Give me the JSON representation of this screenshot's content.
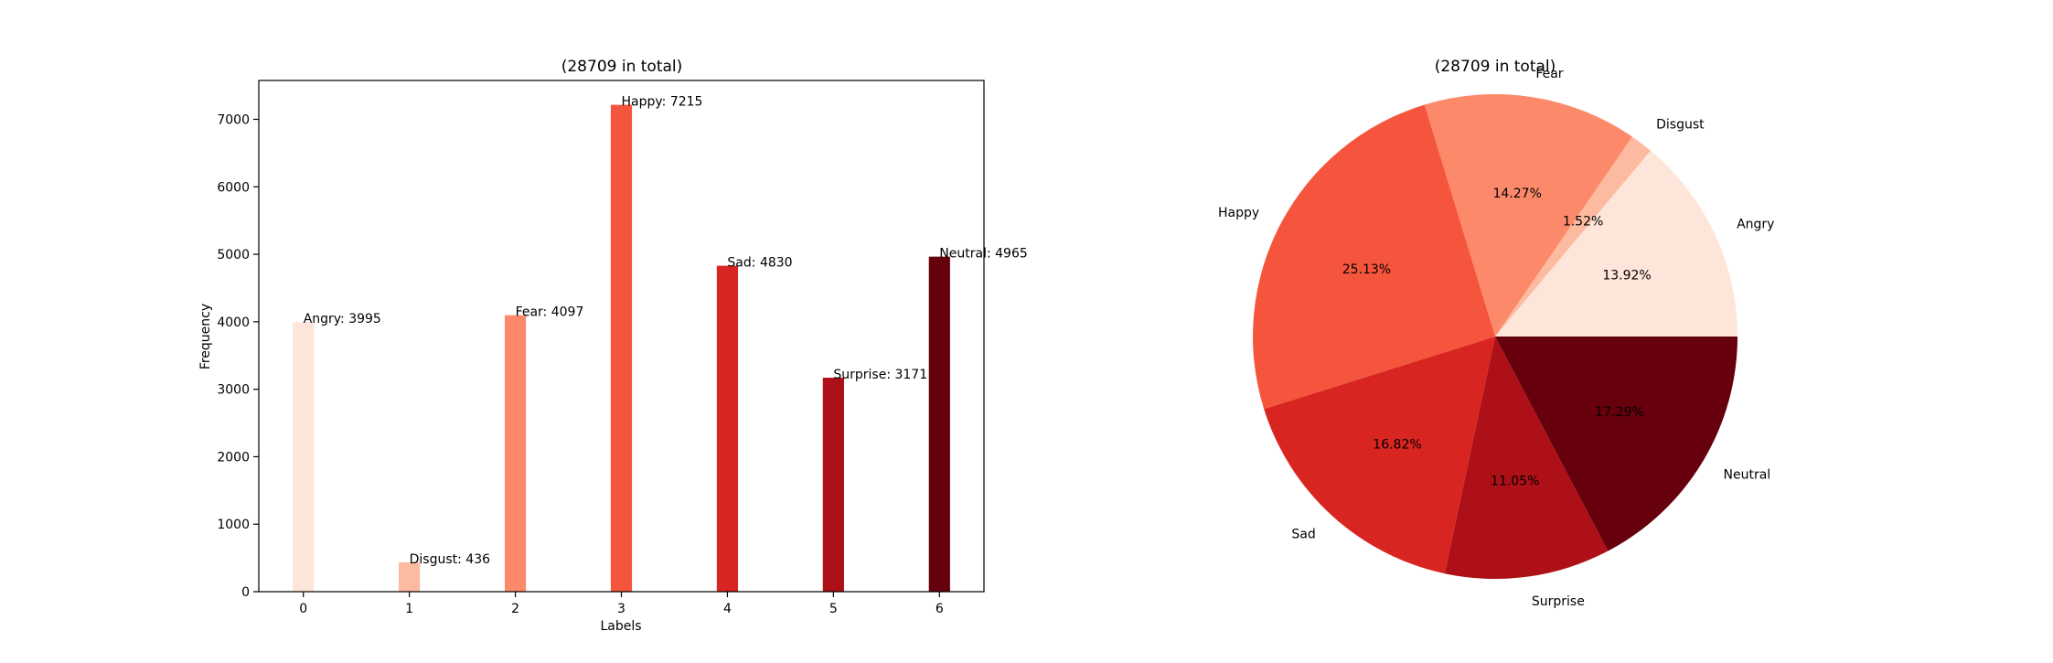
{
  "chart_data": [
    {
      "type": "bar",
      "title": "(28709 in total)",
      "xlabel": "Labels",
      "ylabel": "Frequency",
      "categories": [
        0,
        1,
        2,
        3,
        4,
        5,
        6
      ],
      "values": [
        3995,
        436,
        4097,
        7215,
        4830,
        3171,
        4965
      ],
      "data_labels": [
        "Angry: 3995",
        "Disgust: 436",
        "Fear: 4097",
        "Happy: 7215",
        "Sad: 4830",
        "Surprise: 3171",
        "Neutral: 4965"
      ],
      "colors": [
        "#fee5d9",
        "#fcbba1",
        "#fc8a6a",
        "#f5553c",
        "#d92522",
        "#ad1016",
        "#67000d"
      ],
      "xlim": [
        -0.42,
        6.42
      ],
      "ylim": [
        0,
        7576
      ],
      "yticks": [
        0,
        1000,
        2000,
        3000,
        4000,
        5000,
        6000,
        7000
      ],
      "grid": false
    },
    {
      "type": "pie",
      "title": "(28709 in total)",
      "labels": [
        "Angry",
        "Disgust",
        "Fear",
        "Happy",
        "Sad",
        "Surprise",
        "Neutral"
      ],
      "values": [
        3995,
        436,
        4097,
        7215,
        4830,
        3171,
        4965
      ],
      "percent_labels": [
        "13.92%",
        "1.52%",
        "14.27%",
        "25.13%",
        "16.82%",
        "11.05%",
        "17.29%"
      ],
      "colors": [
        "#fee5d9",
        "#fcbba1",
        "#fc8a6a",
        "#f5553c",
        "#d92522",
        "#ad1016",
        "#67000d"
      ],
      "start_angle": 0,
      "direction": "counterclockwise"
    }
  ]
}
